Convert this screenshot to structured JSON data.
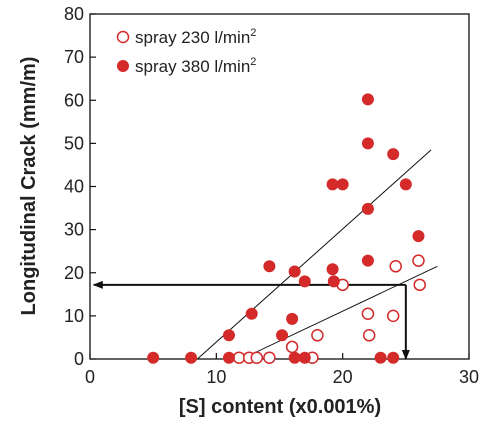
{
  "chart_data": {
    "type": "scatter",
    "title": "",
    "xlabel": "[S] content (x0.001%)",
    "ylabel": "Longitudinal Crack (mm/m)",
    "xlim": [
      0,
      30
    ],
    "ylim": [
      0,
      80
    ],
    "xticks": [
      0,
      10,
      20,
      30
    ],
    "yticks": [
      0,
      10,
      20,
      30,
      40,
      50,
      60,
      70,
      80
    ],
    "grid": false,
    "legend_position": "top-left",
    "series": [
      {
        "name": "spray 230 l/min",
        "name_superscript": "2",
        "marker": "open-circle",
        "color": "#d42a2a",
        "x": [
          11.8,
          12.6,
          13.2,
          14.2,
          16.0,
          17.6,
          18.0,
          20.0,
          22.0,
          22.1,
          24.0,
          24.2,
          26.0,
          26.1
        ],
        "y": [
          0.3,
          0.3,
          0.3,
          0.3,
          2.8,
          0.3,
          5.5,
          17.2,
          10.5,
          5.5,
          10.0,
          21.5,
          22.8,
          17.2
        ]
      },
      {
        "name": "spray 380 l/min",
        "name_superscript": "2",
        "marker": "filled-circle",
        "color": "#d42a2a",
        "x": [
          5.0,
          8.0,
          11.0,
          11.0,
          12.8,
          14.2,
          15.2,
          16.0,
          16.2,
          16.2,
          17.0,
          17.0,
          19.2,
          19.2,
          19.3,
          20.0,
          22.0,
          22.0,
          22.0,
          22.0,
          23.0,
          24.0,
          24.0,
          25.0,
          26.0
        ],
        "y": [
          0.3,
          0.3,
          5.5,
          0.3,
          10.5,
          21.5,
          5.5,
          9.3,
          20.3,
          0.3,
          18.0,
          0.3,
          40.5,
          20.8,
          18.0,
          40.5,
          60.2,
          50.0,
          34.8,
          22.8,
          0.3,
          47.5,
          0.3,
          40.5,
          28.5
        ]
      }
    ],
    "trend_lines": [
      {
        "x": [
          8.5,
          27.0
        ],
        "y": [
          0.0,
          48.5
        ]
      },
      {
        "x": [
          12.0,
          27.5
        ],
        "y": [
          0.0,
          21.5
        ]
      }
    ],
    "annotation_arrows": [
      {
        "from": [
          25.0,
          17.2
        ],
        "to": [
          0.3,
          17.2
        ]
      },
      {
        "from": [
          25.0,
          17.2
        ],
        "to": [
          25.0,
          0.0
        ]
      }
    ]
  }
}
